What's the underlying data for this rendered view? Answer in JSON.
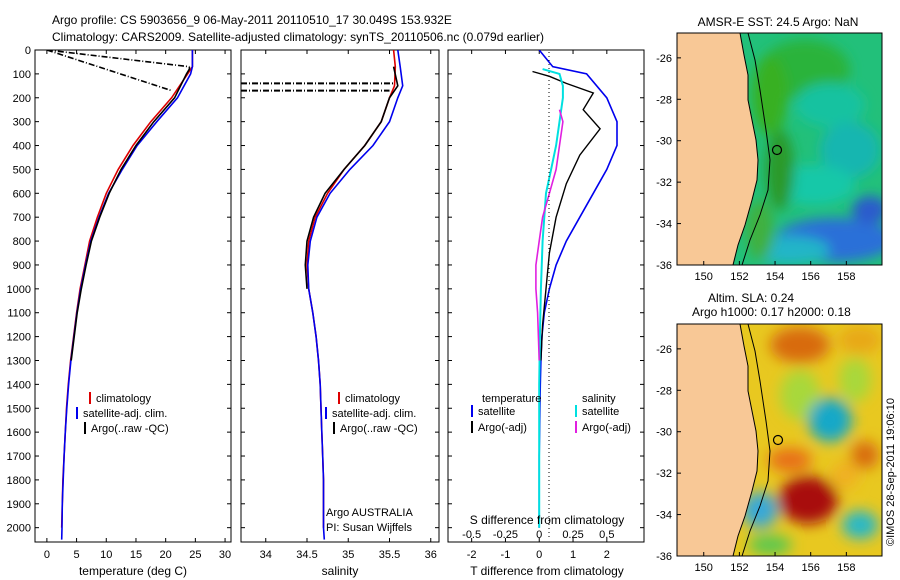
{
  "header": {
    "line1": "Argo profile: CS 5903656_9 06-May-2011 20110510_17 30.049S 153.932E",
    "line2": "Climatology: CARS2009. Satellite-adjusted climatology: synTS_20110506.nc (0.079d earlier)"
  },
  "colors": {
    "climatology": "#dd0000",
    "satellite": "#0000ee",
    "argo": "#000000",
    "salinity_satellite": "#00e0e0",
    "salinity_argo": "#e020e0",
    "land": "#f8c896"
  },
  "chart_data": [
    {
      "type": "line",
      "panel": "temperature",
      "xlabel": "temperature (deg C)",
      "xlim": [
        -2,
        31
      ],
      "ylim": [
        0,
        2060
      ],
      "x_ticks": [
        0,
        5,
        10,
        15,
        20,
        25,
        30
      ],
      "y_ticks": [
        0,
        100,
        200,
        300,
        400,
        500,
        600,
        700,
        800,
        900,
        1000,
        1100,
        1200,
        1300,
        1400,
        1500,
        1600,
        1700,
        1800,
        1900,
        2000
      ],
      "legend": [
        "climatology",
        "satellite-adj. clim.",
        "Argo(..raw -QC)"
      ],
      "series": [
        {
          "name": "climatology",
          "x": [
            24.5,
            24.5,
            23.7,
            21,
            17.5,
            14.5,
            12,
            10,
            8.5,
            7.2,
            6.4,
            5.6,
            5,
            4.5,
            4,
            3.6,
            3.3,
            3.1,
            2.9,
            2.7,
            2.6,
            2.5
          ],
          "y": [
            0,
            70,
            100,
            200,
            300,
            400,
            500,
            600,
            700,
            800,
            900,
            1000,
            1100,
            1200,
            1300,
            1400,
            1500,
            1600,
            1700,
            1800,
            1900,
            2000
          ]
        },
        {
          "name": "satellite-adj. clim.",
          "x": [
            24.5,
            24.5,
            24.2,
            22,
            18.5,
            15.2,
            12.7,
            10.4,
            8.8,
            7.4,
            6.5,
            5.7,
            5.05,
            4.55,
            4.05,
            3.65,
            3.35,
            3.1,
            2.9,
            2.75,
            2.6,
            2.55,
            2.5
          ],
          "y": [
            0,
            70,
            100,
            200,
            300,
            400,
            500,
            600,
            700,
            800,
            900,
            1000,
            1100,
            1200,
            1300,
            1400,
            1500,
            1600,
            1700,
            1800,
            1900,
            2000,
            2050
          ]
        },
        {
          "name": "Argo(..raw -QC)",
          "x": [
            24,
            24,
            23.5,
            21.5,
            18,
            15,
            12.5,
            10.5,
            8.9,
            7.5,
            6.6,
            5.8,
            5.1,
            4.6,
            4.1
          ],
          "y": [
            70,
            80,
            100,
            200,
            300,
            400,
            500,
            600,
            700,
            800,
            900,
            1000,
            1100,
            1200,
            1300
          ]
        },
        {
          "name": "Argo(..raw -QC)",
          "x": [
            0,
            24
          ],
          "y": [
            0,
            70
          ]
        },
        {
          "name": "Argo(..raw -QC)",
          "x": [
            0,
            21
          ],
          "y": [
            0,
            170
          ]
        }
      ]
    },
    {
      "type": "line",
      "panel": "salinity",
      "xlabel": "salinity",
      "xlim": [
        33.7,
        36.1
      ],
      "ylim": [
        0,
        2060
      ],
      "x_ticks": [
        34,
        34.5,
        35,
        35.5,
        36
      ],
      "legend": [
        "climatology",
        "satellite-adj. clim.",
        "Argo(..raw -QC)"
      ],
      "annotation": [
        "Argo AUSTRALIA",
        "PI: Susan Wijffels"
      ],
      "series": [
        {
          "name": "climatology",
          "x": [
            35.55,
            35.57,
            35.56,
            35.5,
            35.4,
            35.2,
            34.95,
            34.75,
            34.6,
            34.52,
            34.5,
            34.52,
            34.57,
            34.61,
            34.64,
            34.66,
            34.67,
            34.68,
            34.69,
            34.7,
            34.7,
            34.7
          ],
          "y": [
            0,
            70,
            150,
            200,
            300,
            400,
            500,
            600,
            700,
            800,
            900,
            1000,
            1100,
            1200,
            1300,
            1400,
            1500,
            1600,
            1700,
            1800,
            1900,
            2000
          ]
        },
        {
          "name": "satellite-adj. clim.",
          "x": [
            35.6,
            35.63,
            35.66,
            35.6,
            35.5,
            35.3,
            35.02,
            34.78,
            34.62,
            34.54,
            34.51,
            34.52,
            34.57,
            34.61,
            34.64,
            34.66,
            34.67,
            34.68,
            34.69,
            34.7,
            34.7,
            34.7,
            34.71
          ],
          "y": [
            0,
            70,
            150,
            200,
            300,
            400,
            500,
            600,
            700,
            800,
            900,
            1000,
            1100,
            1200,
            1300,
            1400,
            1500,
            1600,
            1700,
            1800,
            1900,
            2000,
            2050
          ]
        },
        {
          "name": "Argo(..raw -QC)",
          "x": [
            35.55,
            35.6,
            35.5,
            35.4,
            35.2,
            34.95,
            34.72,
            34.58,
            34.5,
            34.48,
            34.5
          ],
          "y": [
            70,
            150,
            200,
            300,
            400,
            500,
            600,
            700,
            800,
            900,
            1000
          ]
        },
        {
          "name": "Argo(..raw -QC)",
          "x": [
            33.7,
            35.55
          ],
          "y": [
            140,
            140
          ]
        },
        {
          "name": "Argo(..raw -QC)",
          "x": [
            33.7,
            35.5
          ],
          "y": [
            170,
            170
          ]
        }
      ]
    },
    {
      "type": "line",
      "panel": "difference",
      "xlabel": "T difference from climatology",
      "xlabel_top": "S difference from climatology",
      "xlim": [
        -2.7,
        3.1
      ],
      "x_ticks_bottom": [
        -2,
        -1,
        0,
        1,
        2
      ],
      "x_ticks_top": [
        "-0.5",
        "-0.25",
        "0",
        "0.25",
        "0.5"
      ],
      "legend_left": [
        "temperature",
        "satellite",
        "Argo(-adj)"
      ],
      "legend_right": [
        "salinity",
        "satellite",
        "Argo(-adj)"
      ],
      "series": [
        {
          "name": "temperature satellite",
          "x": [
            0,
            0.4,
            1.4,
            2,
            2.3,
            2.3,
            2,
            1.6,
            1.2,
            0.8,
            0.5,
            0.3,
            0.15,
            0.08,
            0.05,
            0.03,
            0.02,
            0.01,
            0,
            0,
            0,
            0
          ],
          "y": [
            0,
            70,
            100,
            200,
            300,
            400,
            500,
            600,
            700,
            800,
            900,
            1000,
            1100,
            1200,
            1300,
            1400,
            1500,
            1600,
            1700,
            1800,
            1900,
            2000
          ]
        },
        {
          "name": "temperature Argo(-adj)",
          "x": [
            -0.2,
            0.3,
            0.8,
            1.6,
            1.3,
            1.8,
            1.2,
            0.8,
            0.5,
            0.3,
            0.2,
            0.1,
            0.05
          ],
          "y": [
            90,
            110,
            140,
            180,
            250,
            330,
            440,
            560,
            700,
            850,
            1000,
            1150,
            1300
          ]
        },
        {
          "name": "salinity satellite",
          "x": [
            0.1,
            0.6,
            0.7,
            0.7,
            0.6,
            0.5,
            0.35,
            0.2,
            0.1,
            0.05,
            0.02,
            0,
            0,
            0
          ],
          "y": [
            80,
            100,
            150,
            200,
            300,
            400,
            500,
            600,
            800,
            1000,
            1200,
            1400,
            1700,
            2000
          ]
        },
        {
          "name": "salinity Argo(-adj)",
          "x": [
            0.6,
            0.7,
            0.6,
            0.5,
            0.3,
            0.1,
            0,
            -0.1,
            -0.1,
            -0.05,
            0
          ],
          "y": [
            250,
            300,
            400,
            500,
            600,
            700,
            800,
            900,
            1000,
            1100,
            1300
          ]
        }
      ]
    },
    {
      "type": "heatmap",
      "panel": "map-sst",
      "title": "AMSR-E SST: 24.5 Argo: NaN",
      "x_ticks": [
        150,
        152,
        154,
        156,
        158
      ],
      "y_ticks": [
        -26,
        -28,
        -30,
        -32,
        -34,
        -36
      ],
      "xlim": [
        148.5,
        160
      ],
      "ylim": [
        -36,
        -24.8
      ]
    },
    {
      "type": "heatmap",
      "panel": "map-sla",
      "title_line1": "Altim. SLA: 0.24",
      "title_line2": "Argo h1000: 0.17 h2000: 0.18",
      "x_ticks": [
        150,
        152,
        154,
        156,
        158
      ],
      "y_ticks": [
        -26,
        -28,
        -30,
        -32,
        -34,
        -36
      ],
      "xlim": [
        148.5,
        160
      ],
      "ylim": [
        -36,
        -24.8
      ]
    }
  ],
  "credit": "©IMOS 28-Sep-2011 19:06:10"
}
